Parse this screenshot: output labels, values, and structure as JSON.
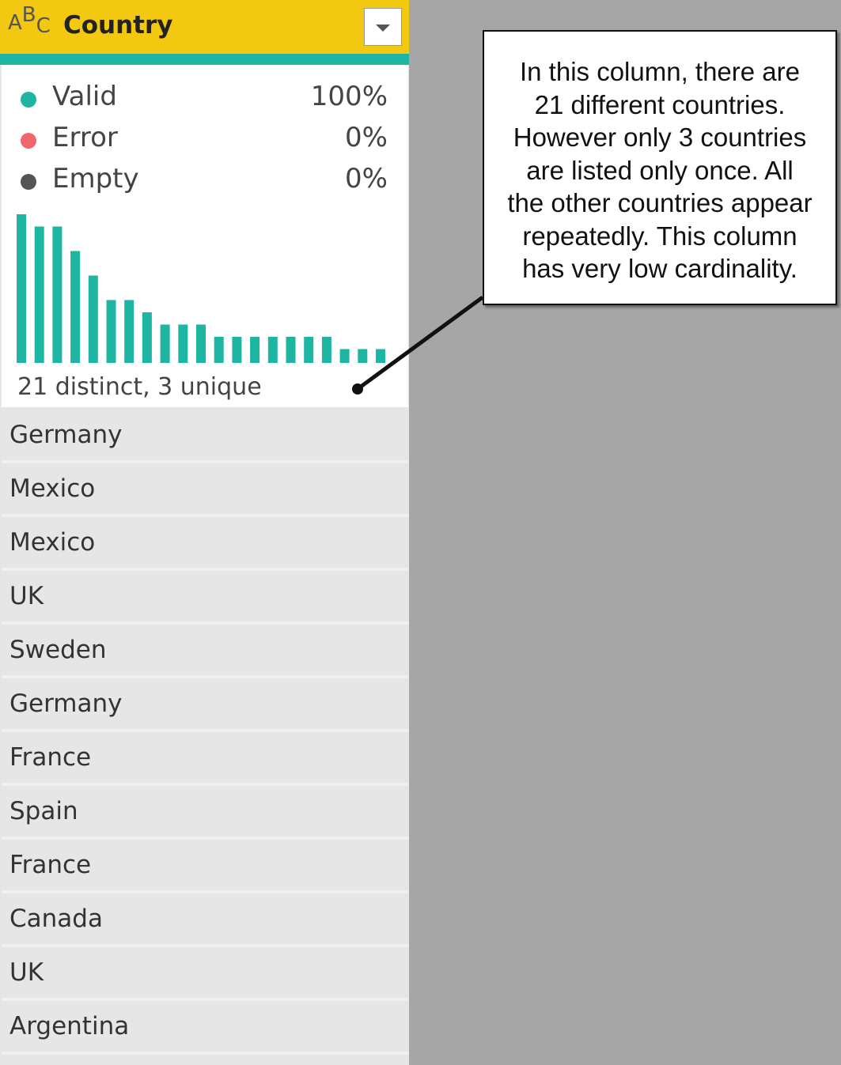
{
  "header": {
    "type_icon": [
      "A",
      "B",
      "C"
    ],
    "title": "Country"
  },
  "quality": [
    {
      "label": "Valid",
      "value": "100%",
      "color": "#1fb5a3"
    },
    {
      "label": "Error",
      "value": "0%",
      "color": "#f0676b"
    },
    {
      "label": "Empty",
      "value": "0%",
      "color": "#555555"
    }
  ],
  "histogram": {
    "type": "bar",
    "values": [
      12,
      11,
      11,
      9,
      7,
      5,
      5,
      4,
      3,
      3,
      3,
      2,
      2,
      2,
      2,
      2,
      2,
      2,
      1,
      1,
      1
    ],
    "color": "#1fb5a3"
  },
  "profile_summary": "21 distinct, 3 unique",
  "rows": [
    "Germany",
    "Mexico",
    "Mexico",
    "UK",
    "Sweden",
    "Germany",
    "France",
    "Spain",
    "France",
    "Canada",
    "UK",
    "Argentina"
  ],
  "callout": {
    "lines": [
      "In this column, there are",
      "21 different countries.",
      "However only 3 countries",
      "are listed only once. All",
      "the other countries appear",
      "repeatedly. This column",
      "has very low cardinality."
    ]
  }
}
